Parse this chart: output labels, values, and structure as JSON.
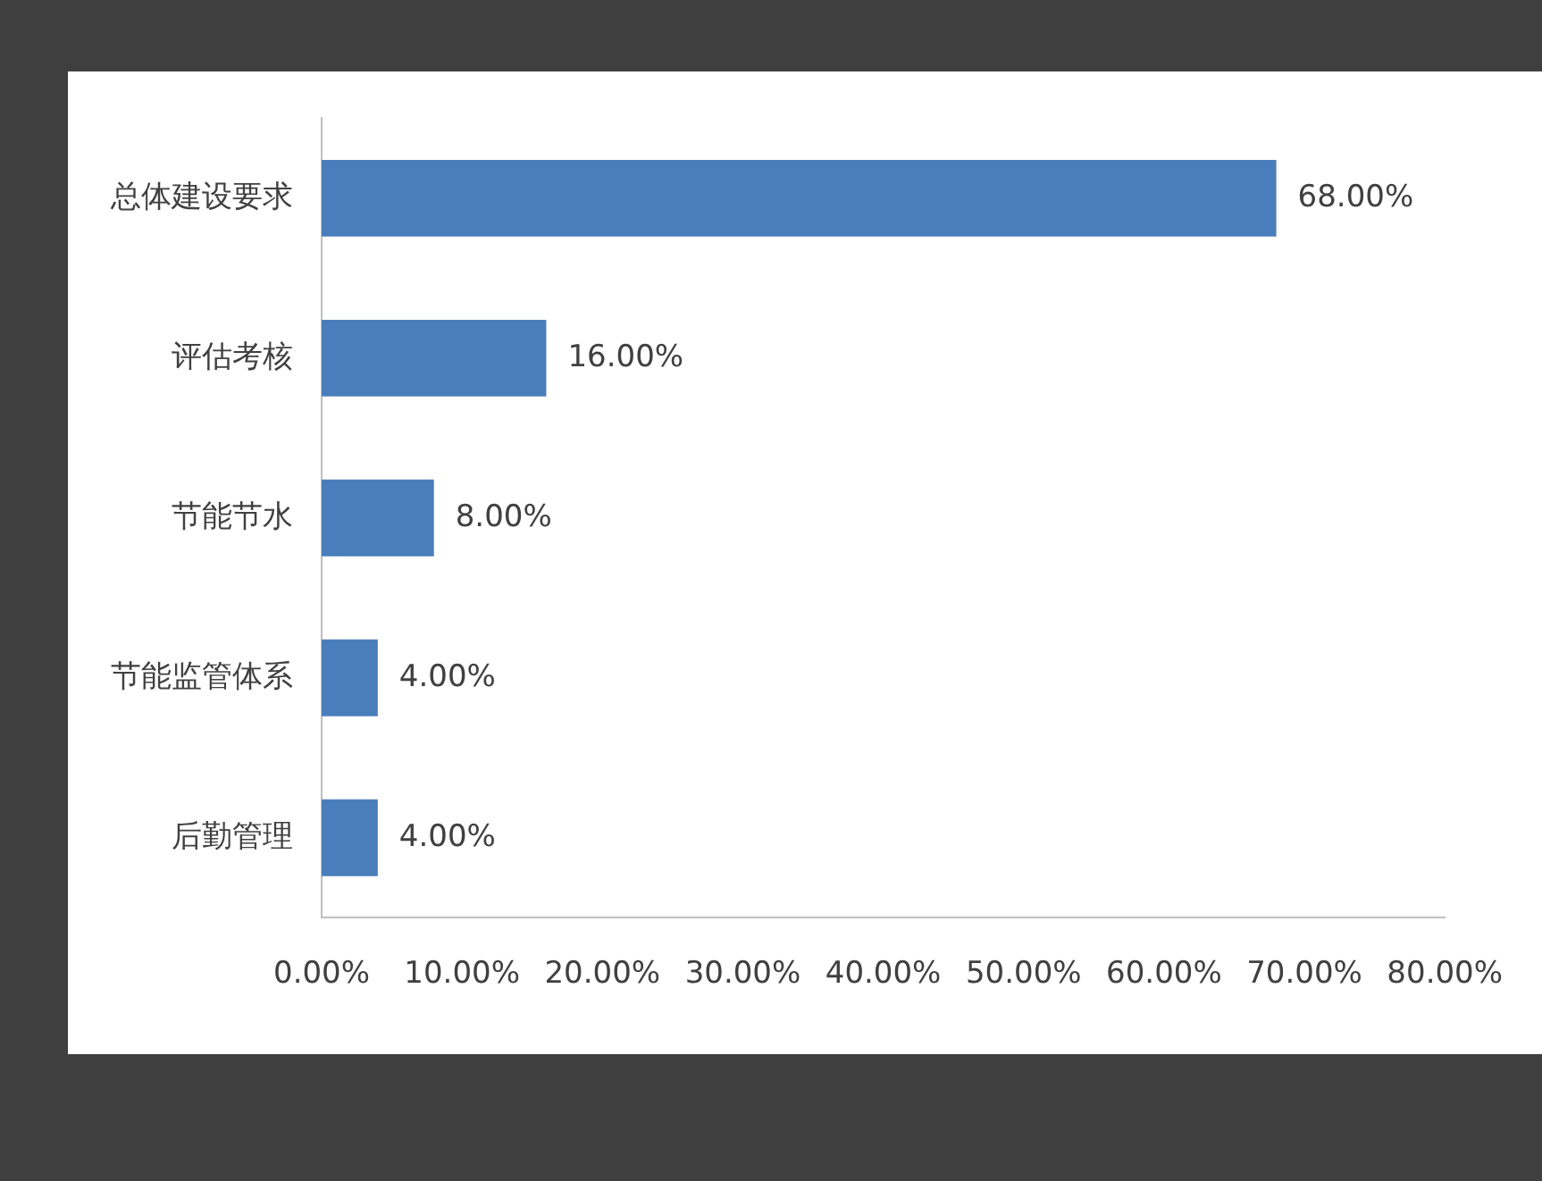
{
  "chart_data": {
    "type": "bar",
    "orientation": "horizontal",
    "categories": [
      "总体建设要求",
      "评估考核",
      "节能节水",
      "节能监管体系",
      "后勤管理"
    ],
    "values": [
      68,
      16,
      8,
      4,
      4
    ],
    "value_labels": [
      "68.00%",
      "16.00%",
      "8.00%",
      "4.00%",
      "4.00%"
    ],
    "color": "#4a7ebb",
    "xlim": [
      0,
      80
    ],
    "xticks": [
      {
        "value": 0,
        "label": "0.00%"
      },
      {
        "value": 10,
        "label": "10.00%"
      },
      {
        "value": 20,
        "label": "20.00%"
      },
      {
        "value": 30,
        "label": "30.00%"
      },
      {
        "value": 40,
        "label": "40.00%"
      },
      {
        "value": 50,
        "label": "50.00%"
      },
      {
        "value": 60,
        "label": "60.00%"
      },
      {
        "value": 70,
        "label": "70.00%"
      },
      {
        "value": 80,
        "label": "80.00%"
      }
    ]
  }
}
